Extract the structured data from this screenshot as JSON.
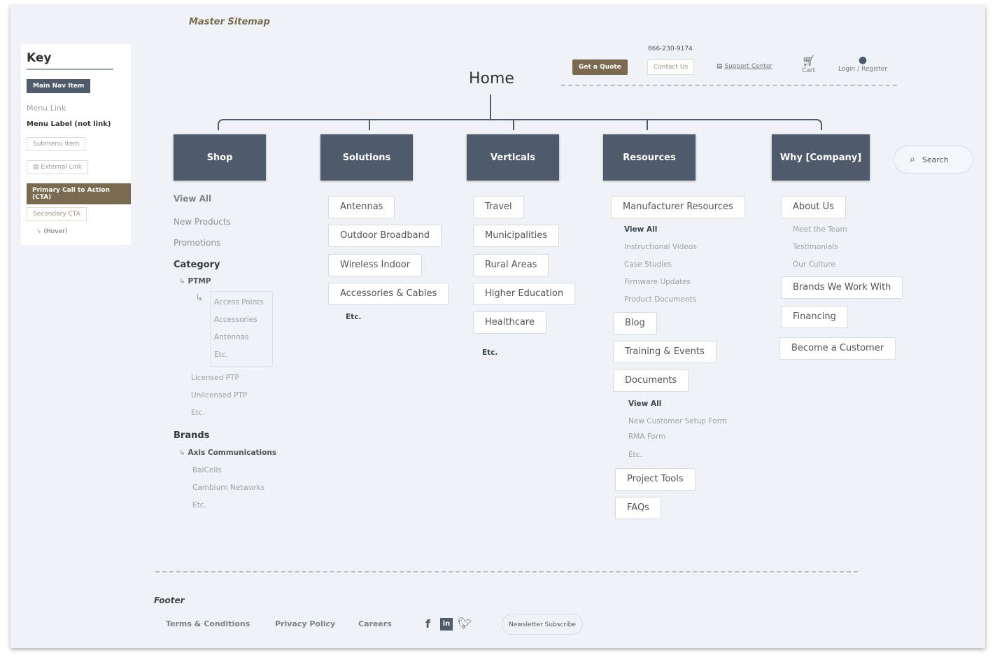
{
  "title": "Master Sitemap",
  "key": {
    "heading": "Key",
    "main_nav": "Main Nav Item",
    "menu_link": "Menu Link",
    "menu_label": "Menu Label (not link)",
    "submenu": "Submenu Item",
    "external": "External Link",
    "primary_cta": "Primary Call to Action (CTA)",
    "secondary_cta": "Secondary CTA",
    "hover": "(Hover)"
  },
  "header": {
    "phone": "866-230-9174",
    "get_quote": "Get a Quote",
    "contact": "Contact Us",
    "support": "Support Center",
    "cart": "Cart",
    "login": "Login / Register",
    "search": "Search"
  },
  "home": "Home",
  "nav": [
    "Shop",
    "Solutions",
    "Verticals",
    "Resources",
    "Why [Company]"
  ],
  "shop": {
    "view_all": "View All",
    "new": "New Products",
    "promos": "Promotions",
    "category": "Category",
    "ptmp": "PTMP",
    "ptmp_items": [
      "Access Points",
      "Accessories",
      "Antennas",
      "Etc."
    ],
    "cat_items": [
      "Licensed PTP",
      "Unlicensed PTP",
      "Etc."
    ],
    "brands": "Brands",
    "brand_first": "Axis Communications",
    "brand_items": [
      "BaiCells",
      "Cambium Networks",
      "Etc."
    ]
  },
  "solutions": {
    "items": [
      "Antennas",
      "Outdoor Broadband",
      "Wireless Indoor",
      "Accessories & Cables"
    ],
    "etc": "Etc."
  },
  "verticals": {
    "items": [
      "Travel",
      "Municipalities",
      "Rural Areas",
      "Higher Education",
      "Healthcare"
    ],
    "etc": "Etc."
  },
  "resources": {
    "manufacturer": "Manufacturer Resources",
    "man_items": [
      "View All",
      "Instructional Videos",
      "Case Studies",
      "Firmware Updates",
      "Product Documents"
    ],
    "blog": "Blog",
    "training": "Training & Events",
    "documents": "Documents",
    "doc_items": [
      "View All",
      "New Customer Setup Form",
      "RMA Form",
      "Etc."
    ],
    "project": "Project Tools",
    "faqs": "FAQs"
  },
  "why": {
    "about": "About Us",
    "about_items": [
      "Meet the Team",
      "Testimonials",
      "Our Culture"
    ],
    "brands": "Brands We Work With",
    "financing": "Financing",
    "become": "Become a Customer"
  },
  "footer": {
    "label": "Footer",
    "links": [
      "Terms & Conditions",
      "Privacy Policy",
      "Careers"
    ],
    "newsletter": "Newsletter Subscribe"
  },
  "colors": {
    "nav": "#4f5b6b",
    "cta": "#7a6a4f",
    "bg": "#eff3f7"
  }
}
